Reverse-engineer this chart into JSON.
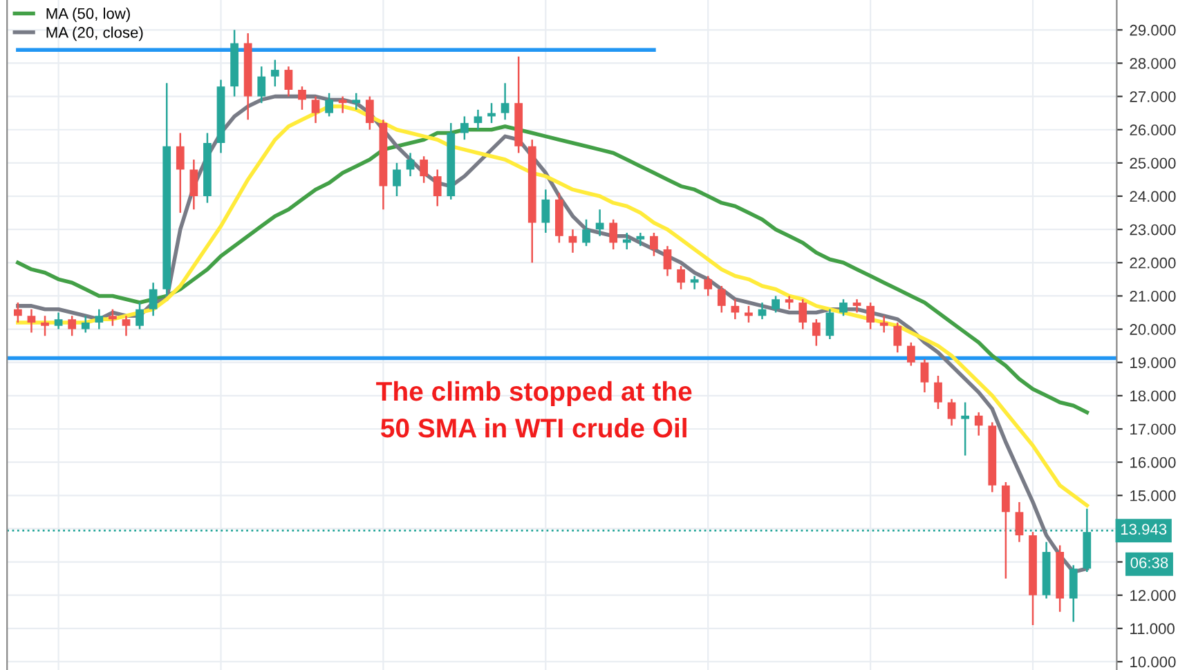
{
  "chart_data": {
    "type": "candlestick",
    "categories": [
      null,
      null,
      null,
      null,
      null,
      null,
      null,
      null,
      null,
      null,
      null,
      null,
      null,
      null,
      null,
      null,
      null,
      null,
      null,
      null,
      null,
      null,
      null,
      null,
      null,
      null,
      null,
      null,
      null,
      null,
      null,
      null,
      null,
      null,
      null,
      null,
      null,
      null,
      null,
      null,
      null,
      null,
      null,
      null,
      null,
      null,
      null,
      null,
      null,
      null,
      null,
      null,
      null,
      null,
      null,
      null,
      null,
      null,
      null,
      null,
      null,
      null,
      null,
      null,
      null,
      null,
      null,
      null,
      null,
      null,
      null,
      null,
      null,
      null,
      null,
      null,
      null,
      null,
      null,
      null
    ],
    "ohlc": [
      [
        20.6,
        20.8,
        20.2,
        20.4
      ],
      [
        20.4,
        20.6,
        19.9,
        20.2
      ],
      [
        20.2,
        20.4,
        19.8,
        20.1
      ],
      [
        20.1,
        20.5,
        20.0,
        20.3
      ],
      [
        20.3,
        20.4,
        19.8,
        20.0
      ],
      [
        20.0,
        20.4,
        19.9,
        20.2
      ],
      [
        20.2,
        20.6,
        20.0,
        20.4
      ],
      [
        20.4,
        20.6,
        20.1,
        20.3
      ],
      [
        20.3,
        20.4,
        19.8,
        20.1
      ],
      [
        20.1,
        20.8,
        20.0,
        20.6
      ],
      [
        20.6,
        21.4,
        20.4,
        21.2
      ],
      [
        21.2,
        27.4,
        21.0,
        25.5
      ],
      [
        25.5,
        25.9,
        23.5,
        24.8
      ],
      [
        24.8,
        25.1,
        23.6,
        24.0
      ],
      [
        24.0,
        25.9,
        23.8,
        25.6
      ],
      [
        25.6,
        27.5,
        25.3,
        27.3
      ],
      [
        27.3,
        29.0,
        27.0,
        28.6
      ],
      [
        28.6,
        28.9,
        26.3,
        27.0
      ],
      [
        27.0,
        27.9,
        26.8,
        27.6
      ],
      [
        27.6,
        28.1,
        27.3,
        27.8
      ],
      [
        27.8,
        27.9,
        27.0,
        27.2
      ],
      [
        27.2,
        27.3,
        26.6,
        26.9
      ],
      [
        26.9,
        27.0,
        26.2,
        26.5
      ],
      [
        26.5,
        27.1,
        26.4,
        26.9
      ],
      [
        26.9,
        27.0,
        26.5,
        26.8
      ],
      [
        26.8,
        27.1,
        26.6,
        26.9
      ],
      [
        26.9,
        27.0,
        26.0,
        26.2
      ],
      [
        26.2,
        26.3,
        23.6,
        24.3
      ],
      [
        24.3,
        25.0,
        24.0,
        24.8
      ],
      [
        24.8,
        25.3,
        24.6,
        25.1
      ],
      [
        25.1,
        25.2,
        24.4,
        24.6
      ],
      [
        24.6,
        24.8,
        23.7,
        24.0
      ],
      [
        24.0,
        26.2,
        23.9,
        25.9
      ],
      [
        25.9,
        26.4,
        25.7,
        26.2
      ],
      [
        26.2,
        26.6,
        26.0,
        26.4
      ],
      [
        26.4,
        26.8,
        26.2,
        26.5
      ],
      [
        26.5,
        27.4,
        26.3,
        26.8
      ],
      [
        26.8,
        28.2,
        25.3,
        25.5
      ],
      [
        25.5,
        25.7,
        22.0,
        23.2
      ],
      [
        23.2,
        24.2,
        22.9,
        23.9
      ],
      [
        23.9,
        24.1,
        22.6,
        22.8
      ],
      [
        22.8,
        23.0,
        22.3,
        22.6
      ],
      [
        22.6,
        23.3,
        22.5,
        23.0
      ],
      [
        23.0,
        23.6,
        22.8,
        23.2
      ],
      [
        23.2,
        23.3,
        22.4,
        22.6
      ],
      [
        22.6,
        22.9,
        22.4,
        22.7
      ],
      [
        22.7,
        22.9,
        22.5,
        22.8
      ],
      [
        22.8,
        22.9,
        22.2,
        22.4
      ],
      [
        22.4,
        22.5,
        21.6,
        21.8
      ],
      [
        21.8,
        21.9,
        21.2,
        21.4
      ],
      [
        21.4,
        21.6,
        21.2,
        21.5
      ],
      [
        21.5,
        21.6,
        21.0,
        21.2
      ],
      [
        21.2,
        21.3,
        20.5,
        20.7
      ],
      [
        20.7,
        20.9,
        20.3,
        20.5
      ],
      [
        20.5,
        20.7,
        20.2,
        20.4
      ],
      [
        20.4,
        20.8,
        20.3,
        20.6
      ],
      [
        20.6,
        21.0,
        20.5,
        20.9
      ],
      [
        20.9,
        21.0,
        20.6,
        20.8
      ],
      [
        20.8,
        20.9,
        20.0,
        20.2
      ],
      [
        20.2,
        20.3,
        19.5,
        19.8
      ],
      [
        19.8,
        20.6,
        19.7,
        20.5
      ],
      [
        20.5,
        20.9,
        20.4,
        20.8
      ],
      [
        20.8,
        20.9,
        20.5,
        20.7
      ],
      [
        20.7,
        20.8,
        20.0,
        20.2
      ],
      [
        20.2,
        20.4,
        19.9,
        20.1
      ],
      [
        20.1,
        20.2,
        19.3,
        19.5
      ],
      [
        19.5,
        19.6,
        18.9,
        19.0
      ],
      [
        19.0,
        19.1,
        18.1,
        18.4
      ],
      [
        18.4,
        18.6,
        17.6,
        17.8
      ],
      [
        17.8,
        17.9,
        17.1,
        17.3
      ],
      [
        17.3,
        17.8,
        16.2,
        17.4
      ],
      [
        17.4,
        17.5,
        16.8,
        17.1
      ],
      [
        17.1,
        17.2,
        15.1,
        15.3
      ],
      [
        15.3,
        15.4,
        12.5,
        14.5
      ],
      [
        14.5,
        14.8,
        13.6,
        13.8
      ],
      [
        13.8,
        13.9,
        11.1,
        12.0
      ],
      [
        12.0,
        13.6,
        11.9,
        13.3
      ],
      [
        13.3,
        13.5,
        11.5,
        11.9
      ],
      [
        11.9,
        12.9,
        11.2,
        12.8
      ],
      [
        12.8,
        14.6,
        12.7,
        13.9
      ]
    ],
    "series": [
      {
        "name": "MA (50, low)",
        "type": "line",
        "color": "#43a047",
        "values": [
          22.0,
          21.8,
          21.7,
          21.5,
          21.4,
          21.2,
          21.0,
          21.0,
          20.9,
          20.8,
          20.9,
          21.0,
          21.2,
          21.5,
          21.8,
          22.2,
          22.5,
          22.8,
          23.1,
          23.4,
          23.6,
          23.9,
          24.2,
          24.4,
          24.7,
          24.9,
          25.1,
          25.4,
          25.5,
          25.6,
          25.7,
          25.9,
          25.9,
          26.0,
          26.0,
          26.0,
          26.1,
          26.0,
          25.9,
          25.8,
          25.7,
          25.6,
          25.5,
          25.4,
          25.3,
          25.1,
          24.9,
          24.7,
          24.5,
          24.3,
          24.2,
          24.0,
          23.8,
          23.7,
          23.5,
          23.3,
          23.0,
          22.8,
          22.6,
          22.3,
          22.1,
          22.0,
          21.8,
          21.6,
          21.4,
          21.2,
          21.0,
          20.8,
          20.5,
          20.2,
          19.9,
          19.6,
          19.2,
          18.9,
          18.5,
          18.2,
          18.0,
          17.8,
          17.7,
          17.5
        ]
      },
      {
        "name": "MA (20, close)",
        "type": "line",
        "color": "#787b86",
        "values": [
          20.7,
          20.7,
          20.6,
          20.6,
          20.5,
          20.4,
          20.3,
          20.5,
          20.4,
          20.4,
          20.8,
          20.9,
          23.0,
          24.3,
          25.2,
          25.9,
          26.4,
          26.7,
          26.9,
          27.0,
          27.0,
          27.0,
          27.0,
          26.9,
          26.9,
          26.8,
          26.5,
          26.0,
          25.5,
          25.1,
          24.7,
          24.4,
          24.3,
          24.6,
          25.0,
          25.4,
          25.8,
          25.7,
          25.2,
          24.7,
          24.0,
          23.4,
          23.0,
          22.9,
          22.8,
          22.8,
          22.6,
          22.4,
          22.2,
          22.0,
          21.7,
          21.5,
          21.2,
          20.9,
          20.8,
          20.7,
          20.6,
          20.5,
          20.5,
          20.5,
          20.6,
          20.6,
          20.6,
          20.5,
          20.4,
          20.3,
          20.0,
          19.6,
          19.3,
          18.9,
          18.5,
          18.1,
          17.6,
          16.6,
          15.7,
          14.8,
          13.8,
          13.2,
          12.7,
          12.8
        ]
      },
      {
        "type": "line",
        "color": "#ffeb3b",
        "values": [
          20.2,
          20.2,
          20.2,
          20.2,
          20.2,
          20.2,
          20.3,
          20.3,
          20.4,
          20.5,
          20.6,
          20.9,
          21.3,
          21.9,
          22.5,
          23.1,
          23.8,
          24.5,
          25.1,
          25.7,
          26.1,
          26.3,
          26.5,
          26.7,
          26.7,
          26.6,
          26.4,
          26.2,
          26.0,
          25.9,
          25.8,
          25.7,
          25.5,
          25.4,
          25.3,
          25.2,
          25.1,
          24.9,
          24.7,
          24.6,
          24.4,
          24.2,
          24.1,
          24.0,
          23.8,
          23.7,
          23.5,
          23.2,
          23.0,
          22.7,
          22.4,
          22.1,
          21.8,
          21.6,
          21.5,
          21.3,
          21.2,
          21.0,
          20.9,
          20.7,
          20.6,
          20.5,
          20.4,
          20.3,
          20.2,
          20.1,
          19.9,
          19.7,
          19.5,
          19.2,
          18.8,
          18.4,
          18.0,
          17.5,
          17.0,
          16.5,
          15.9,
          15.3,
          15.0,
          14.7
        ]
      },
      {
        "type": "line",
        "color": "#2196f3",
        "values": [
          28.4,
          28.4,
          28.4,
          28.4,
          28.4,
          28.4,
          28.4,
          28.4,
          28.4,
          28.4,
          28.4,
          28.4,
          28.4,
          28.4,
          28.4,
          28.4,
          28.4,
          28.4,
          28.4,
          28.4,
          28.4,
          28.4,
          28.4,
          28.4,
          28.4,
          28.4,
          28.4,
          28.4,
          28.4,
          28.4,
          28.4,
          28.4,
          28.4,
          28.4,
          28.4,
          28.4,
          28.4,
          28.4,
          28.4,
          28.4,
          28.4,
          28.4,
          28.4,
          28.4,
          28.4,
          28.4,
          28.4,
          28.4,
          null,
          null,
          null,
          null,
          null,
          null,
          null,
          null,
          null,
          null,
          null,
          null,
          null,
          null,
          null,
          null,
          null,
          null,
          null,
          null,
          null,
          null,
          null,
          null,
          null,
          null,
          null,
          null,
          null,
          null,
          null,
          null
        ]
      }
    ],
    "ref_lines": [
      {
        "axis": "y",
        "value": 19.13,
        "color": "#2196f3",
        "line_style": "solid"
      },
      {
        "axis": "y",
        "value": 13.943,
        "label": "13.943",
        "color": "#26a69a",
        "line_style": "dotted"
      }
    ],
    "annotations": [
      "The climb stopped at the\n50 SMA in WTI crude Oil",
      "06:38"
    ],
    "ylim": [
      9.75,
      29.9
    ],
    "yticks": [
      {
        "value": 10,
        "label": "10.000"
      },
      {
        "value": 11,
        "label": "11.000"
      },
      {
        "value": 12,
        "label": "12.000"
      },
      {
        "value": 13,
        "label": null
      },
      {
        "value": 14,
        "label": null
      },
      {
        "value": 15,
        "label": "15.000"
      },
      {
        "value": 16,
        "label": "16.000"
      },
      {
        "value": 17,
        "label": "17.000"
      },
      {
        "value": 18,
        "label": "18.000"
      },
      {
        "value": 19,
        "label": "19.000"
      },
      {
        "value": 20,
        "label": "20.000"
      },
      {
        "value": 21,
        "label": "21.000"
      },
      {
        "value": 22,
        "label": "22.000"
      },
      {
        "value": 23,
        "label": "23.000"
      },
      {
        "value": 24,
        "label": "24.000"
      },
      {
        "value": 25,
        "label": "25.000"
      },
      {
        "value": 26,
        "label": "26.000"
      },
      {
        "value": 27,
        "label": "27.000"
      },
      {
        "value": 28,
        "label": "28.000"
      },
      {
        "value": 29,
        "label": "29.000"
      }
    ],
    "grid": true,
    "legend": "top left",
    "tick_labels": "y"
  }
}
